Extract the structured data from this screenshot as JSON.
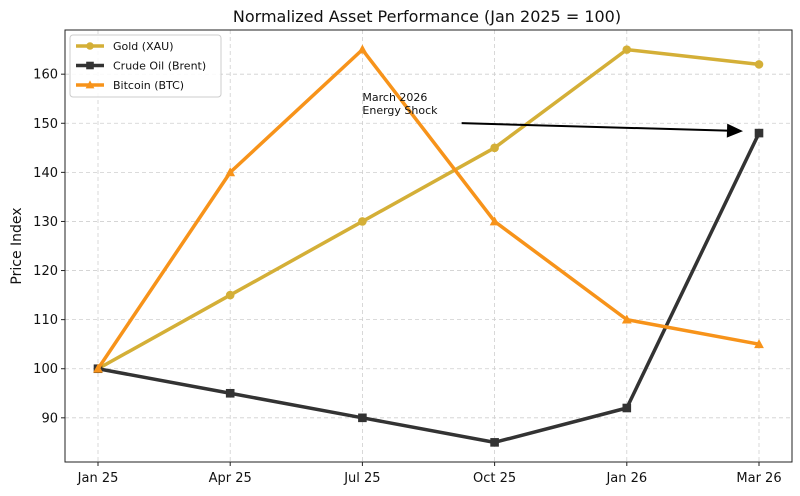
{
  "chart_data": {
    "type": "line",
    "title": "Normalized Asset Performance (Jan 2025 = 100)",
    "xlabel": "",
    "ylabel": "Price Index",
    "categories": [
      "Jan 25",
      "Apr 25",
      "Jul 25",
      "Oct 25",
      "Jan 26",
      "Mar 26"
    ],
    "ylim": [
      81,
      169
    ],
    "yticks": [
      90,
      100,
      110,
      120,
      130,
      140,
      150,
      160
    ],
    "grid": true,
    "legend_position": "top-left",
    "series": [
      {
        "name": "Gold (XAU)",
        "color": "#d4af37",
        "marker": "circle",
        "values": [
          100,
          115,
          130,
          145,
          165,
          162
        ]
      },
      {
        "name": "Crude Oil (Brent)",
        "color": "#333333",
        "marker": "square",
        "values": [
          100,
          95,
          90,
          85,
          92,
          148
        ]
      },
      {
        "name": "Bitcoin (BTC)",
        "color": "#f7931a",
        "marker": "triangle",
        "values": [
          100,
          140,
          165,
          130,
          110,
          105
        ]
      }
    ],
    "annotations": [
      {
        "text_lines": [
          "March 2026",
          "Energy Shock"
        ],
        "target_category": "Mar 26",
        "target_value": 148,
        "text_category_pos": 2.0,
        "text_value_pos": 154.5
      }
    ]
  }
}
